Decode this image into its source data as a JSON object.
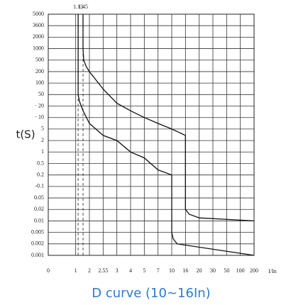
{
  "chart_data": {
    "type": "line",
    "title": "D curve (10~16In)",
    "y_label": "t(S)",
    "x_label": "I/In",
    "xticks": [
      0,
      1,
      2,
      2.55,
      3,
      4,
      5,
      7,
      10,
      16,
      20,
      30,
      50,
      100,
      200
    ],
    "yticks": [
      0.001,
      0.002,
      0.005,
      0.01,
      0.02,
      0.05,
      {
        "value": 0.1,
        "label": "-0.1"
      },
      0.2,
      0.5,
      1,
      2,
      5,
      {
        "value": 10,
        "label": "· 10"
      },
      {
        "value": 20,
        "label": "· 20"
      },
      50,
      100,
      200,
      500,
      1000,
      2000,
      3600,
      5000
    ],
    "xlim": [
      0,
      200
    ],
    "ylim": [
      0.001,
      5000
    ],
    "markers": [
      1.13,
      1.45
    ],
    "grid": true,
    "series": [
      {
        "color": "#111111",
        "x": [
          1.45,
          1.45,
          1.5,
          1.7,
          2,
          2.55,
          3,
          4,
          5,
          7,
          10,
          16,
          16,
          17,
          20,
          200
        ],
        "values": [
          5000,
          1000,
          500,
          300,
          200,
          70,
          25,
          15,
          10,
          7,
          5,
          3,
          0.02,
          0.015,
          0.012,
          0.01
        ]
      },
      {
        "color": "#111111",
        "x": [
          1.13,
          1.13,
          1.2,
          1.45,
          2,
          2.55,
          3,
          4,
          5,
          7,
          10,
          10,
          10.5,
          12,
          200
        ],
        "values": [
          5000,
          50,
          30,
          15,
          7,
          3,
          2,
          1,
          0.7,
          0.3,
          0.2,
          0.005,
          0.003,
          0.002,
          0.001
        ]
      }
    ]
  }
}
